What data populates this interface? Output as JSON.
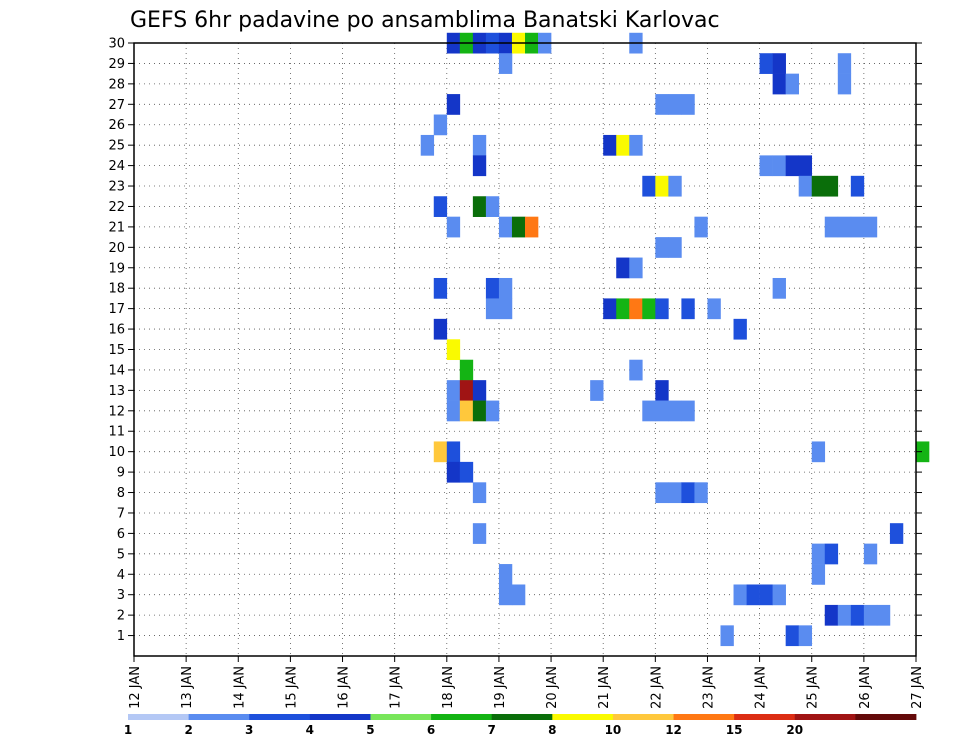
{
  "chart_data": {
    "type": "heatmap",
    "title": "GEFS 6hr padavine po ansamblima Banatski Karlovac",
    "xlabel": "",
    "ylabel": "",
    "x_range": [
      "12 JAN",
      "27 JAN"
    ],
    "x_tick_labels": [
      "12 JAN",
      "13 JAN",
      "14 JAN",
      "15 JAN",
      "16 JAN",
      "17 JAN",
      "18 JAN",
      "19 JAN",
      "20 JAN",
      "21 JAN",
      "22 JAN",
      "23 JAN",
      "24 JAN",
      "25 JAN",
      "26 JAN",
      "27 JAN"
    ],
    "x_step_hours": 6,
    "y_range": [
      0,
      30
    ],
    "y_tick_labels": [
      "1",
      "2",
      "3",
      "4",
      "5",
      "6",
      "7",
      "8",
      "9",
      "10",
      "11",
      "12",
      "13",
      "14",
      "15",
      "16",
      "17",
      "18",
      "19",
      "20",
      "21",
      "22",
      "23",
      "24",
      "25",
      "26",
      "27",
      "28",
      "29",
      "30"
    ],
    "grid": true,
    "colorbar": {
      "placement": "bottom",
      "levels": [
        1,
        2,
        3,
        4,
        5,
        6,
        7,
        8,
        10,
        12,
        15,
        20
      ],
      "colors": [
        "#b4c8f5",
        "#5a8cf0",
        "#1e50dc",
        "#1436c8",
        "#78e65a",
        "#14b414",
        "#0a6e0a",
        "#fafa00",
        "#ffc83c",
        "#ff7814",
        "#dc2d14",
        "#a01414",
        "#640a0a"
      ]
    },
    "cells": [
      {
        "time": "18 JAN 00Z",
        "member": 30,
        "value": 3
      },
      {
        "time": "18 JAN 06Z",
        "member": 30,
        "value": 5
      },
      {
        "time": "18 JAN 12Z",
        "member": 30,
        "value": 3
      },
      {
        "time": "18 JAN 18Z",
        "member": 30,
        "value": 2
      },
      {
        "time": "19 JAN 00Z",
        "member": 30,
        "value": 3
      },
      {
        "time": "19 JAN 06Z",
        "member": 30,
        "value": 7
      },
      {
        "time": "19 JAN 12Z",
        "member": 30,
        "value": 5
      },
      {
        "time": "19 JAN 18Z",
        "member": 30,
        "value": 1
      },
      {
        "time": "21 JAN 12Z",
        "member": 30,
        "value": 1
      },
      {
        "time": "19 JAN 00Z",
        "member": 29,
        "value": 1
      },
      {
        "time": "24 JAN 00Z",
        "member": 29,
        "value": 2
      },
      {
        "time": "24 JAN 06Z",
        "member": 29,
        "value": 3
      },
      {
        "time": "25 JAN 12Z",
        "member": 29,
        "value": 1
      },
      {
        "time": "24 JAN 06Z",
        "member": 28,
        "value": 3
      },
      {
        "time": "24 JAN 12Z",
        "member": 28,
        "value": 1
      },
      {
        "time": "25 JAN 12Z",
        "member": 28,
        "value": 1
      },
      {
        "time": "18 JAN 00Z",
        "member": 27,
        "value": 3
      },
      {
        "time": "22 JAN 00Z",
        "member": 27,
        "value": 1
      },
      {
        "time": "22 JAN 06Z",
        "member": 27,
        "value": 1
      },
      {
        "time": "22 JAN 12Z",
        "member": 27,
        "value": 1
      },
      {
        "time": "17 JAN 18Z",
        "member": 26,
        "value": 1
      },
      {
        "time": "17 JAN 12Z",
        "member": 25,
        "value": 1
      },
      {
        "time": "18 JAN 12Z",
        "member": 25,
        "value": 1
      },
      {
        "time": "21 JAN 00Z",
        "member": 25,
        "value": 3
      },
      {
        "time": "21 JAN 06Z",
        "member": 25,
        "value": 7
      },
      {
        "time": "21 JAN 12Z",
        "member": 25,
        "value": 1
      },
      {
        "time": "18 JAN 12Z",
        "member": 24,
        "value": 3
      },
      {
        "time": "24 JAN 00Z",
        "member": 24,
        "value": 1
      },
      {
        "time": "24 JAN 06Z",
        "member": 24,
        "value": 1
      },
      {
        "time": "24 JAN 12Z",
        "member": 24,
        "value": 3
      },
      {
        "time": "24 JAN 18Z",
        "member": 24,
        "value": 3
      },
      {
        "time": "21 JAN 18Z",
        "member": 23,
        "value": 2
      },
      {
        "time": "22 JAN 00Z",
        "member": 23,
        "value": 7
      },
      {
        "time": "22 JAN 06Z",
        "member": 23,
        "value": 1
      },
      {
        "time": "24 JAN 18Z",
        "member": 23,
        "value": 1
      },
      {
        "time": "25 JAN 00Z",
        "member": 23,
        "value": 6
      },
      {
        "time": "25 JAN 06Z",
        "member": 23,
        "value": 6
      },
      {
        "time": "25 JAN 18Z",
        "member": 23,
        "value": 2
      },
      {
        "time": "17 JAN 18Z",
        "member": 22,
        "value": 2
      },
      {
        "time": "18 JAN 12Z",
        "member": 22,
        "value": 6
      },
      {
        "time": "18 JAN 18Z",
        "member": 22,
        "value": 1
      },
      {
        "time": "18 JAN 00Z",
        "member": 21,
        "value": 1
      },
      {
        "time": "19 JAN 00Z",
        "member": 21,
        "value": 1
      },
      {
        "time": "19 JAN 06Z",
        "member": 21,
        "value": 6
      },
      {
        "time": "19 JAN 12Z",
        "member": 21,
        "value": 10
      },
      {
        "time": "22 JAN 18Z",
        "member": 21,
        "value": 1
      },
      {
        "time": "25 JAN 06Z",
        "member": 21,
        "value": 1
      },
      {
        "time": "25 JAN 12Z",
        "member": 21,
        "value": 1
      },
      {
        "time": "25 JAN 18Z",
        "member": 21,
        "value": 1
      },
      {
        "time": "26 JAN 00Z",
        "member": 21,
        "value": 1
      },
      {
        "time": "22 JAN 00Z",
        "member": 20,
        "value": 1
      },
      {
        "time": "22 JAN 06Z",
        "member": 20,
        "value": 1
      },
      {
        "time": "21 JAN 06Z",
        "member": 19,
        "value": 3
      },
      {
        "time": "21 JAN 12Z",
        "member": 19,
        "value": 1
      },
      {
        "time": "17 JAN 18Z",
        "member": 18,
        "value": 2
      },
      {
        "time": "18 JAN 18Z",
        "member": 18,
        "value": 2
      },
      {
        "time": "19 JAN 00Z",
        "member": 18,
        "value": 1
      },
      {
        "time": "24 JAN 06Z",
        "member": 18,
        "value": 1
      },
      {
        "time": "18 JAN 18Z",
        "member": 17,
        "value": 1
      },
      {
        "time": "19 JAN 00Z",
        "member": 17,
        "value": 1
      },
      {
        "time": "21 JAN 00Z",
        "member": 17,
        "value": 3
      },
      {
        "time": "21 JAN 06Z",
        "member": 17,
        "value": 5
      },
      {
        "time": "21 JAN 12Z",
        "member": 17,
        "value": 10
      },
      {
        "time": "21 JAN 18Z",
        "member": 17,
        "value": 5
      },
      {
        "time": "22 JAN 00Z",
        "member": 17,
        "value": 2
      },
      {
        "time": "22 JAN 12Z",
        "member": 17,
        "value": 2
      },
      {
        "time": "23 JAN 00Z",
        "member": 17,
        "value": 1
      },
      {
        "time": "17 JAN 18Z",
        "member": 16,
        "value": 3
      },
      {
        "time": "23 JAN 12Z",
        "member": 16,
        "value": 2
      },
      {
        "time": "18 JAN 00Z",
        "member": 15,
        "value": 7
      },
      {
        "time": "18 JAN 06Z",
        "member": 14,
        "value": 5
      },
      {
        "time": "21 JAN 12Z",
        "member": 14,
        "value": 1
      },
      {
        "time": "18 JAN 00Z",
        "member": 13,
        "value": 1
      },
      {
        "time": "18 JAN 06Z",
        "member": 13,
        "value": 15
      },
      {
        "time": "18 JAN 12Z",
        "member": 13,
        "value": 3
      },
      {
        "time": "20 JAN 18Z",
        "member": 13,
        "value": 1
      },
      {
        "time": "22 JAN 00Z",
        "member": 13,
        "value": 3
      },
      {
        "time": "18 JAN 00Z",
        "member": 12,
        "value": 1
      },
      {
        "time": "18 JAN 06Z",
        "member": 12,
        "value": 8
      },
      {
        "time": "18 JAN 12Z",
        "member": 12,
        "value": 6
      },
      {
        "time": "18 JAN 18Z",
        "member": 12,
        "value": 1
      },
      {
        "time": "21 JAN 18Z",
        "member": 12,
        "value": 1
      },
      {
        "time": "22 JAN 00Z",
        "member": 12,
        "value": 1
      },
      {
        "time": "22 JAN 06Z",
        "member": 12,
        "value": 1
      },
      {
        "time": "22 JAN 12Z",
        "member": 12,
        "value": 1
      },
      {
        "time": "17 JAN 18Z",
        "member": 10,
        "value": 8
      },
      {
        "time": "18 JAN 00Z",
        "member": 10,
        "value": 2
      },
      {
        "time": "25 JAN 00Z",
        "member": 10,
        "value": 1
      },
      {
        "time": "27 JAN 00Z",
        "member": 10,
        "value": 5
      },
      {
        "time": "18 JAN 00Z",
        "member": 9,
        "value": 3
      },
      {
        "time": "18 JAN 06Z",
        "member": 9,
        "value": 2
      },
      {
        "time": "18 JAN 12Z",
        "member": 8,
        "value": 1
      },
      {
        "time": "22 JAN 00Z",
        "member": 8,
        "value": 1
      },
      {
        "time": "22 JAN 06Z",
        "member": 8,
        "value": 1
      },
      {
        "time": "22 JAN 12Z",
        "member": 8,
        "value": 2
      },
      {
        "time": "22 JAN 18Z",
        "member": 8,
        "value": 1
      },
      {
        "time": "18 JAN 12Z",
        "member": 6,
        "value": 1
      },
      {
        "time": "26 JAN 12Z",
        "member": 6,
        "value": 2
      },
      {
        "time": "25 JAN 00Z",
        "member": 5,
        "value": 1
      },
      {
        "time": "25 JAN 06Z",
        "member": 5,
        "value": 2
      },
      {
        "time": "26 JAN 00Z",
        "member": 5,
        "value": 1
      },
      {
        "time": "19 JAN 00Z",
        "member": 4,
        "value": 1
      },
      {
        "time": "25 JAN 00Z",
        "member": 4,
        "value": 1
      },
      {
        "time": "19 JAN 00Z",
        "member": 3,
        "value": 1
      },
      {
        "time": "19 JAN 06Z",
        "member": 3,
        "value": 1
      },
      {
        "time": "23 JAN 12Z",
        "member": 3,
        "value": 1
      },
      {
        "time": "23 JAN 18Z",
        "member": 3,
        "value": 2
      },
      {
        "time": "24 JAN 00Z",
        "member": 3,
        "value": 2
      },
      {
        "time": "24 JAN 06Z",
        "member": 3,
        "value": 1
      },
      {
        "time": "25 JAN 06Z",
        "member": 2,
        "value": 3
      },
      {
        "time": "25 JAN 12Z",
        "member": 2,
        "value": 1
      },
      {
        "time": "25 JAN 18Z",
        "member": 2,
        "value": 2
      },
      {
        "time": "26 JAN 00Z",
        "member": 2,
        "value": 1
      },
      {
        "time": "26 JAN 06Z",
        "member": 2,
        "value": 1
      },
      {
        "time": "23 JAN 06Z",
        "member": 1,
        "value": 1
      },
      {
        "time": "24 JAN 12Z",
        "member": 1,
        "value": 2
      },
      {
        "time": "24 JAN 18Z",
        "member": 1,
        "value": 1
      }
    ]
  }
}
